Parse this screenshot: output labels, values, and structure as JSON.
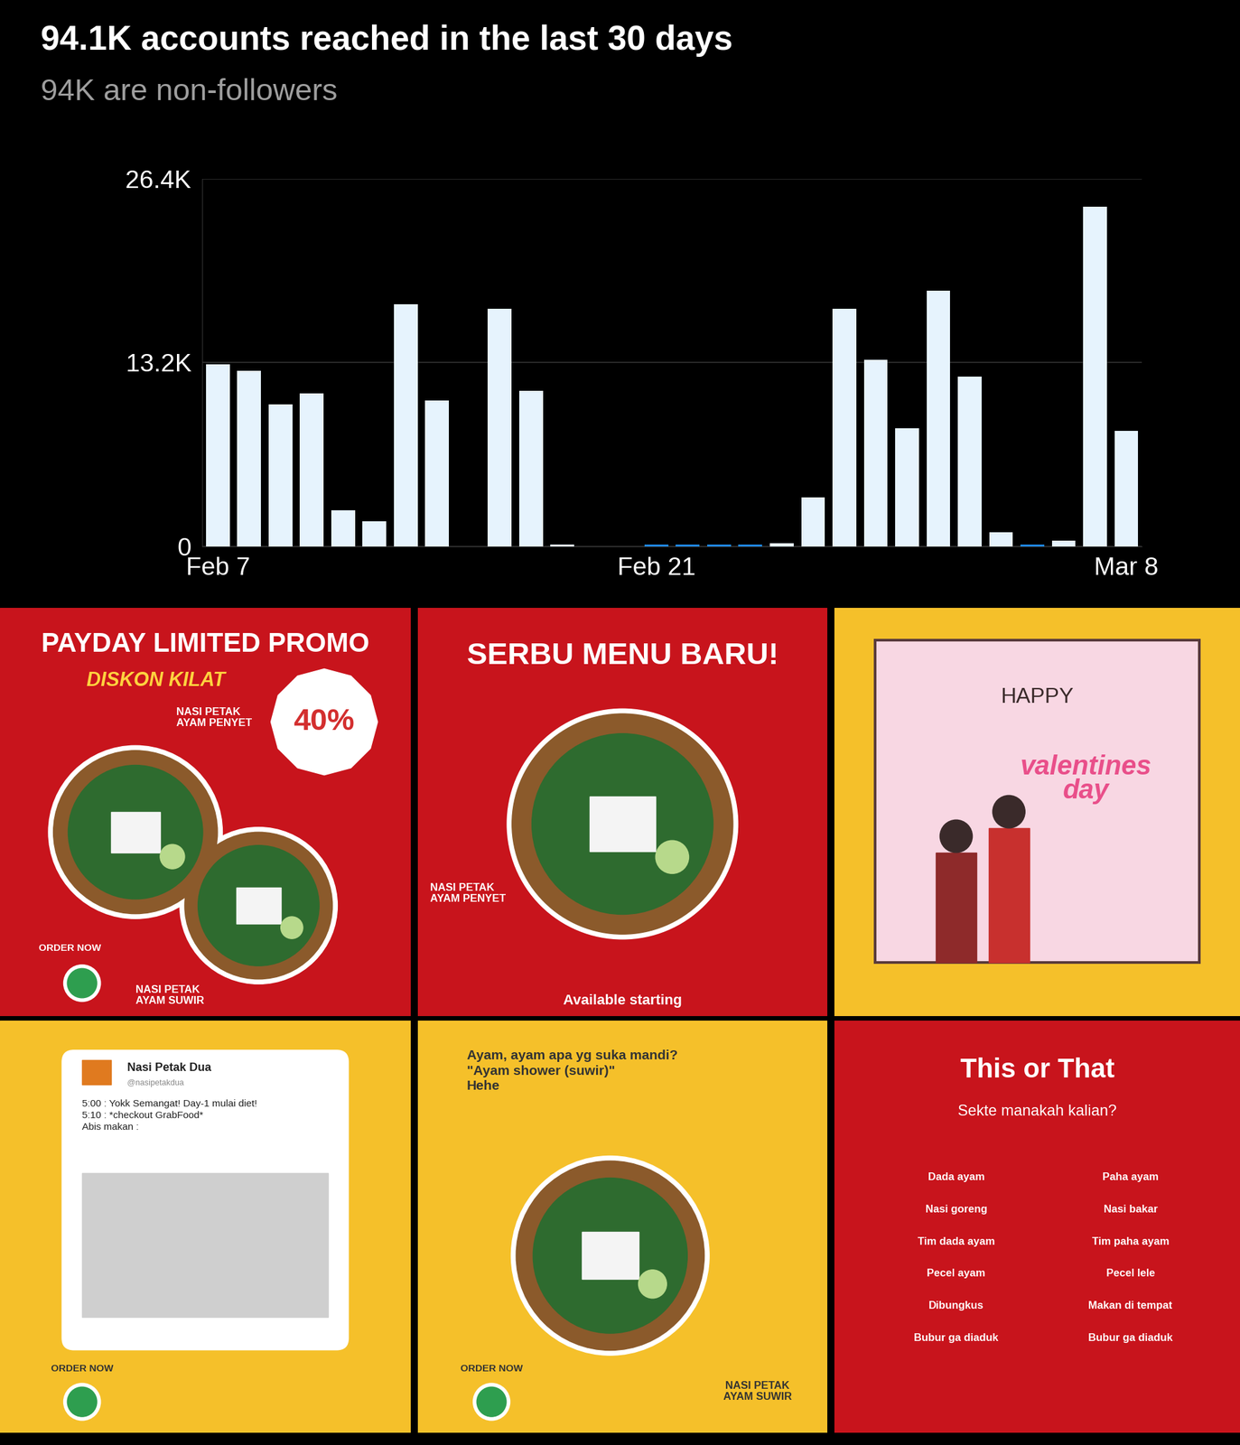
{
  "chart_data": {
    "type": "bar",
    "title": "94.1K accounts reached in the last 30 days",
    "subtitle": "94K are non-followers",
    "categories": [
      "Feb 7",
      null,
      null,
      null,
      null,
      null,
      null,
      null,
      null,
      null,
      null,
      null,
      null,
      null,
      "Feb 21",
      null,
      null,
      null,
      null,
      null,
      null,
      null,
      null,
      null,
      null,
      null,
      null,
      null,
      null,
      "Mar 8"
    ],
    "values": [
      13100,
      12600,
      10200,
      11000,
      2600,
      1800,
      17400,
      10500,
      0,
      17100,
      11200,
      100,
      0,
      0,
      100,
      100,
      100,
      100,
      200,
      3500,
      17100,
      13400,
      8500,
      18400,
      12200,
      1000,
      100,
      400,
      24400,
      8300
    ],
    "colors": [
      "#e6f3fd",
      "#e6f3fd",
      "#e6f3fd",
      "#e6f3fd",
      "#e6f3fd",
      "#e6f3fd",
      "#e6f3fd",
      "#e6f3fd",
      "#e6f3fd",
      "#e6f3fd",
      "#e6f3fd",
      "#e6f3fd",
      "#e6f3fd",
      "#e6f3fd",
      "#1e88e5",
      "#1e88e5",
      "#1e88e5",
      "#1e88e5",
      "#e6f3fd",
      "#e6f3fd",
      "#e6f3fd",
      "#e6f3fd",
      "#e6f3fd",
      "#e6f3fd",
      "#e6f3fd",
      "#e6f3fd",
      "#1e88e5",
      "#e6f3fd",
      "#e6f3fd",
      "#e6f3fd"
    ],
    "ylim": [
      0,
      26400
    ],
    "yticks": [
      0,
      {
        "value": 13200,
        "label": "13.2K"
      },
      {
        "value": 26400,
        "label": "26.4K"
      }
    ],
    "grid": true
  },
  "posts": [
    {
      "headline": "PAYDAY LIMITED PROMO",
      "subheadline": "DISKON KILAT",
      "label_top": "NASI PETAK\nAYAM PENYET",
      "badge": "40%",
      "button": "ORDER NOW",
      "label_bottom": "NASI PETAK\nAYAM SUWIR"
    },
    {
      "headline": "SERBU MENU BARU!",
      "label": "NASI PETAK\nAYAM PENYET",
      "footer": "Available starting"
    },
    {
      "greeting": "HAPPY",
      "script": "valentines\nday"
    },
    {
      "name": "Nasi Petak Dua",
      "handle": "@nasipetakdua",
      "body": "5:00 : Yokk Semangat! Day-1 mulai diet!\n5:10 : *checkout GrabFood*\nAbis makan :",
      "button": "ORDER NOW"
    },
    {
      "caption": "Ayam, ayam apa yg suka mandi?\n\"Ayam shower (suwir)\"\nHehe",
      "label": "NASI PETAK\nAYAM SUWIR",
      "button": "ORDER NOW"
    },
    {
      "title": "This or That",
      "subtitle": "Sekte manakah kalian?",
      "options": [
        [
          "Dada ayam",
          "Paha ayam"
        ],
        [
          "Nasi goreng",
          "Nasi bakar"
        ],
        [
          "Tim dada ayam",
          "Tim paha ayam"
        ],
        [
          "Pecel ayam",
          "Pecel lele"
        ],
        [
          "Dibungkus",
          "Makan di tempat"
        ],
        [
          "Bubur ga diaduk",
          "Bubur ga diaduk"
        ]
      ]
    }
  ]
}
